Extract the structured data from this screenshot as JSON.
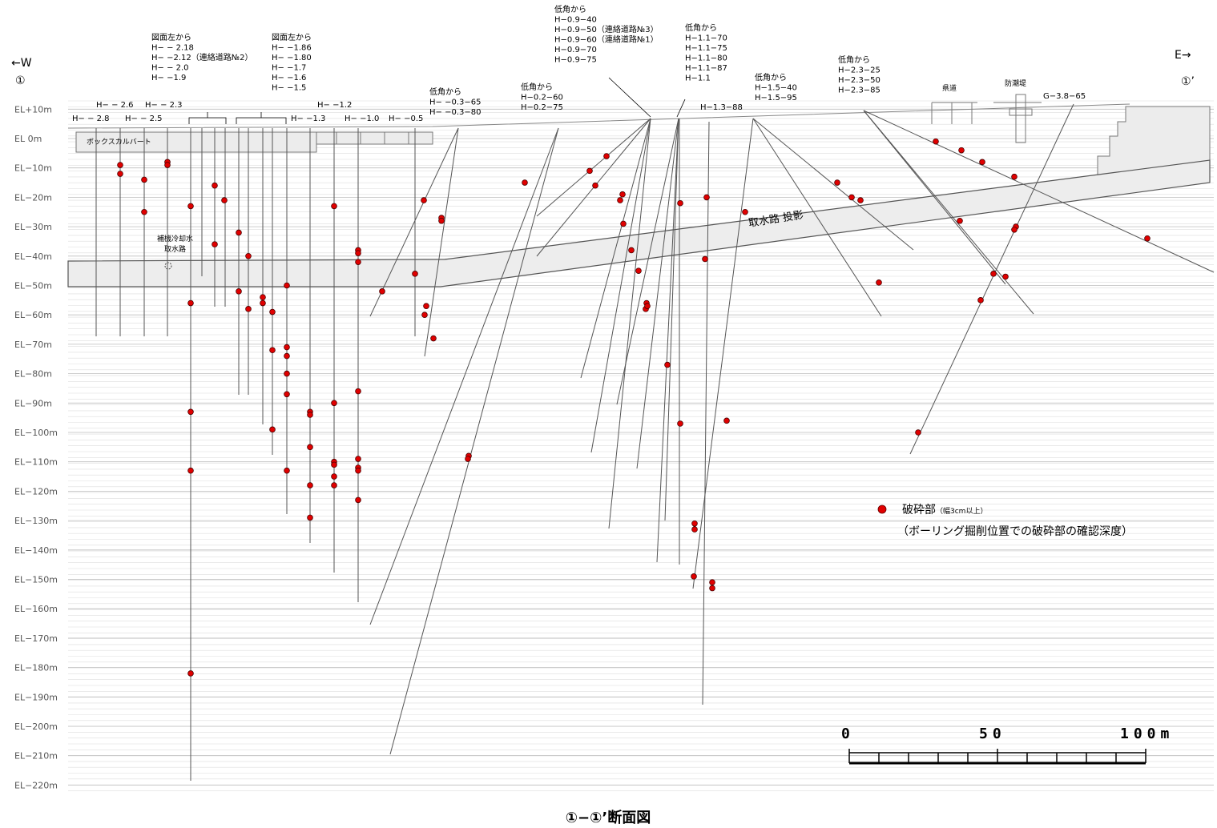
{
  "header": {
    "west_label": "←W",
    "west_marker": "①",
    "east_label": "E→",
    "east_marker": "①’"
  },
  "elevation_labels": [
    "EL+10m",
    "EL  0m",
    "EL−10m",
    "EL−20m",
    "EL−30m",
    "EL−40m",
    "EL−50m",
    "EL−60m",
    "EL−70m",
    "EL−80m",
    "EL−90m",
    "EL−100m",
    "EL−110m",
    "EL−120m",
    "EL−130m",
    "EL−140m",
    "EL−150m",
    "EL−160m",
    "EL−170m",
    "EL−180m",
    "EL−190m",
    "EL−200m",
    "EL−210m",
    "EL−220m"
  ],
  "borehole_groups": [
    {
      "lines": [
        "H− − 2.8"
      ]
    },
    {
      "lines": [
        "H− − 2.6"
      ]
    },
    {
      "lines": [
        "H− − 2.5"
      ]
    },
    {
      "lines": [
        "H− − 2.3"
      ]
    },
    {
      "lines": [
        "図面左から",
        "H− − 2.18",
        "H− −2.12（連絡道路№2）",
        "H− − 2.0",
        "H− −1.9"
      ]
    },
    {
      "lines": [
        "図面左から",
        "H− −1.86",
        "H− −1.80",
        "H− −1.7",
        "H− −1.6",
        "H− −1.5"
      ]
    },
    {
      "lines": [
        "H− −1.3"
      ]
    },
    {
      "lines": [
        "H− −1.2"
      ]
    },
    {
      "lines": [
        "H− −1.0"
      ]
    },
    {
      "lines": [
        "H− −0.5"
      ]
    },
    {
      "lines": [
        "低角から",
        "H− −0.3−65",
        "H− −0.3−80"
      ]
    },
    {
      "lines": [
        "低角から",
        "H−0.2−60",
        "H−0.2−75"
      ]
    },
    {
      "lines": [
        "低角から",
        "H−0.9−40",
        "H−0.9−50（連絡道路№3）",
        "H−0.9−60（連絡道路№1）",
        "H−0.9−70",
        "H−0.9−75"
      ]
    },
    {
      "lines": [
        "低角から",
        "H−1.1−70",
        "H−1.1−75",
        "H−1.1−80",
        "H−1.1−87",
        "H−1.1"
      ]
    },
    {
      "lines": [
        "H−1.3−88"
      ]
    },
    {
      "lines": [
        "低角から",
        "H−1.5−40",
        "H−1.5−95"
      ]
    },
    {
      "lines": [
        "低角から",
        "H−2.3−25",
        "H−2.3−50",
        "H−2.3−85"
      ]
    },
    {
      "lines": [
        "G−3.8−65"
      ]
    }
  ],
  "structures": {
    "box_culvert": "ボックスカルバート",
    "intake_label_1": "補機冷却水",
    "intake_label_2": "取水路",
    "intake_projection": "取水路  投影",
    "prefectural_road": "県道",
    "seawall": "防潮堤"
  },
  "legend": {
    "label_main": "破砕部",
    "label_sub": "（幅3cm以上）",
    "note": "（ボーリング掘削位置での破砕部の確認深度）",
    "marker_color": "#e00000"
  },
  "scale_bar": {
    "tick_0": "0",
    "tick_50": "50",
    "tick_100": "100m"
  },
  "caption": "①−①’断面図",
  "colors": {
    "fracture": "#e00000",
    "tunnel_fill": "#ededed",
    "grid": "#cccccc",
    "borehole": "#555555"
  },
  "chart_data": {
    "type": "scatter",
    "yaxis_unit": "m",
    "fracture_depths_EL": [
      -9,
      -12,
      -14,
      -25,
      -8,
      -9,
      -23,
      -56,
      -93,
      -113,
      -182,
      -16,
      -36,
      -21,
      -32,
      -40,
      -52,
      -58,
      -54,
      -56,
      -59,
      -72,
      -99,
      -50,
      -71,
      -74,
      -80,
      -87,
      -113,
      -93,
      -94,
      -105,
      -118,
      -129,
      -23,
      -90,
      -110,
      -111,
      -115,
      -118,
      -38,
      -39,
      -42,
      -86,
      -109,
      -112,
      -113,
      -123,
      -52,
      -46,
      -57,
      -60,
      -68,
      -21,
      -27,
      -28,
      -108,
      -109,
      -15,
      -11,
      -16,
      -6,
      -19,
      -21,
      -29,
      -38,
      -45,
      -56,
      -58,
      -57,
      -22,
      -41,
      -20,
      -77,
      -97,
      -131,
      -133,
      -149,
      -151,
      -153,
      -96,
      -25,
      -15,
      -20,
      -21,
      -28,
      -49,
      -1,
      -4,
      -8,
      -13,
      -34,
      -30,
      -31,
      -46,
      -47,
      -55,
      -100
    ]
  }
}
